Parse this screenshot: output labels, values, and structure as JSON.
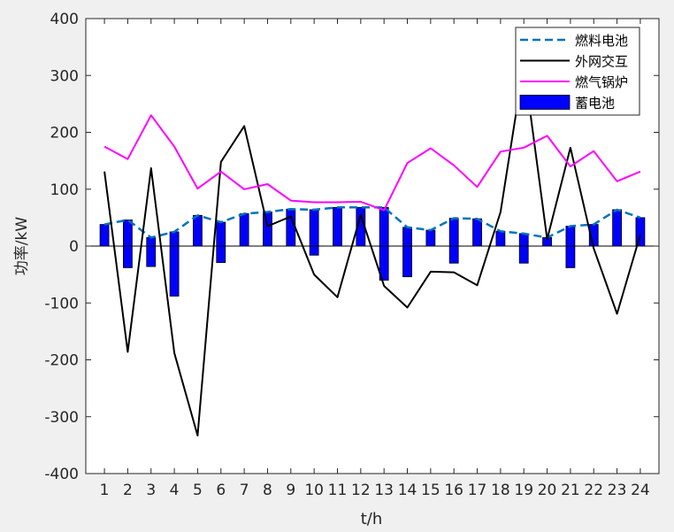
{
  "chart_data": {
    "type": "bar+line",
    "xlabel": "t/h",
    "ylabel": "功率/kW",
    "xlim": [
      0.2,
      24.8
    ],
    "ylim": [
      -400,
      400
    ],
    "y_ticks": [
      -400,
      -300,
      -200,
      -100,
      0,
      100,
      200,
      300,
      400
    ],
    "x": [
      1,
      2,
      3,
      4,
      5,
      6,
      7,
      8,
      9,
      10,
      11,
      12,
      13,
      14,
      15,
      16,
      17,
      18,
      19,
      20,
      21,
      22,
      23,
      24
    ],
    "grid": false,
    "legend_position": "top-right",
    "series": [
      {
        "name": "燃料电池",
        "type": "line",
        "style": "dashed",
        "color": "#0072bd",
        "values": [
          38,
          46,
          15,
          25,
          54,
          42,
          57,
          60,
          65,
          64,
          68,
          68,
          68,
          33,
          28,
          49,
          48,
          26,
          22,
          15,
          35,
          38,
          64,
          50
        ]
      },
      {
        "name": "外网交互",
        "type": "line",
        "style": "solid",
        "color": "#000000",
        "values": [
          131,
          -186,
          137,
          -188,
          -333,
          148,
          211,
          35,
          52,
          -50,
          -90,
          55,
          -70,
          -108,
          -45,
          -46,
          -69,
          60,
          320,
          12,
          173,
          -4,
          -119,
          20
        ]
      },
      {
        "name": "燃气锅炉",
        "type": "line",
        "style": "solid",
        "color": "#ff00ff",
        "values": [
          175,
          153,
          230,
          175,
          101,
          131,
          100,
          109,
          80,
          77,
          77,
          78,
          63,
          146,
          172,
          142,
          104,
          166,
          173,
          194,
          140,
          167,
          114,
          131
        ]
      },
      {
        "name": "蓄电池",
        "type": "bar",
        "color": "#0000ff",
        "values": [
          [
            38
          ],
          [
            46,
            -38
          ],
          [
            15,
            -36
          ],
          [
            25,
            -88
          ],
          [
            54
          ],
          [
            42,
            -29
          ],
          [
            57
          ],
          [
            60
          ],
          [
            65
          ],
          [
            64,
            -16
          ],
          [
            68
          ],
          [
            68
          ],
          [
            68,
            -60
          ],
          [
            33,
            -54
          ],
          [
            28
          ],
          [
            49,
            -30
          ],
          [
            48
          ],
          [
            26
          ],
          [
            22,
            -30
          ],
          [
            15
          ],
          [
            35,
            -38
          ],
          [
            38
          ],
          [
            64
          ],
          [
            50
          ]
        ]
      }
    ]
  }
}
